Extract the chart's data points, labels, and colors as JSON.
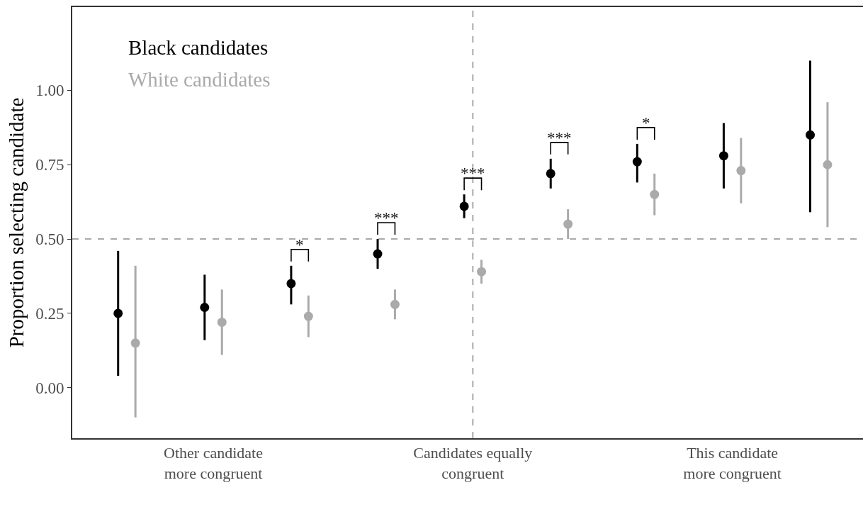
{
  "chart_data": {
    "type": "scatter",
    "ylabel": "Proportion selecting candidate",
    "categories": [
      null,
      "Other candidate\nmore congruent",
      null,
      null,
      "Candidates equally\ncongruent",
      null,
      null,
      "This candidate\nmore congruent",
      null
    ],
    "series": [
      {
        "name": "Black candidates",
        "color": "#000000",
        "values": [
          0.25,
          0.27,
          0.35,
          0.45,
          0.61,
          0.72,
          0.76,
          0.78,
          0.85
        ],
        "errors": [
          [
            0.04,
            0.46
          ],
          [
            0.16,
            0.38
          ],
          [
            0.28,
            0.41
          ],
          [
            0.4,
            0.5
          ],
          [
            0.57,
            0.65
          ],
          [
            0.67,
            0.77
          ],
          [
            0.69,
            0.82
          ],
          [
            0.67,
            0.89
          ],
          [
            0.59,
            1.1
          ]
        ]
      },
      {
        "name": "White candidates",
        "color": "#aaaaaa",
        "values": [
          0.15,
          0.22,
          0.24,
          0.28,
          0.39,
          0.55,
          0.65,
          0.73,
          0.75
        ],
        "errors": [
          [
            -0.1,
            0.41
          ],
          [
            0.11,
            0.33
          ],
          [
            0.17,
            0.31
          ],
          [
            0.23,
            0.33
          ],
          [
            0.35,
            0.43
          ],
          [
            0.5,
            0.6
          ],
          [
            0.58,
            0.72
          ],
          [
            0.62,
            0.84
          ],
          [
            0.54,
            0.96
          ]
        ]
      }
    ],
    "ylim": [
      -0.17,
      1.28
    ],
    "yticks": [
      {
        "value": 0,
        "label": "0.00"
      },
      {
        "value": 0.25,
        "label": "0.25"
      },
      {
        "value": 0.5,
        "label": "0.50"
      },
      {
        "value": 0.75,
        "label": "0.75"
      },
      {
        "value": 1,
        "label": "1.00"
      }
    ],
    "ref_lines": [
      {
        "axis": "x",
        "value": "Candidates equally\ncongruent",
        "color": "#aaaaaa",
        "line_style": "dashed"
      },
      {
        "axis": "y",
        "value": 0.5,
        "color": "#aaaaaa",
        "line_style": "dashed"
      }
    ],
    "annotations": [
      "*",
      "***",
      "***",
      "***",
      "*"
    ],
    "marker": "circle",
    "legend": "top left"
  }
}
